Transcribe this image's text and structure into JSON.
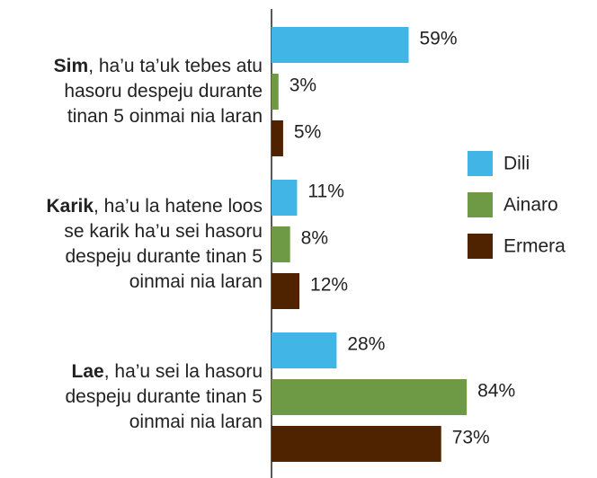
{
  "chart_data": {
    "type": "bar",
    "orientation": "horizontal",
    "categories": [
      "Sim, ha’u ta’uk tebes atu hasoru despeju durante tinan 5 oinmai nia laran",
      "Karik, ha’u la hatene loos se karik ha’u sei hasoru despeju durante tinan 5 oinmai nia laran",
      "Lae, ha’u sei la hasoru despeju durante tinan 5 oinmai nia laran"
    ],
    "series": [
      {
        "name": "Dili",
        "color": "#41b6e6",
        "values": [
          59,
          11,
          28
        ],
        "value_labels": [
          "59%",
          "11%",
          "28%"
        ]
      },
      {
        "name": "Ainaro",
        "color": "#6e9a45",
        "values": [
          3,
          8,
          84
        ],
        "value_labels": [
          "3%",
          "8%",
          "84%"
        ]
      },
      {
        "name": "Ermera",
        "color": "#4f2300",
        "values": [
          5,
          12,
          73
        ],
        "value_labels": [
          "5%",
          "12%",
          "73%"
        ]
      }
    ],
    "legend": "right"
  }
}
